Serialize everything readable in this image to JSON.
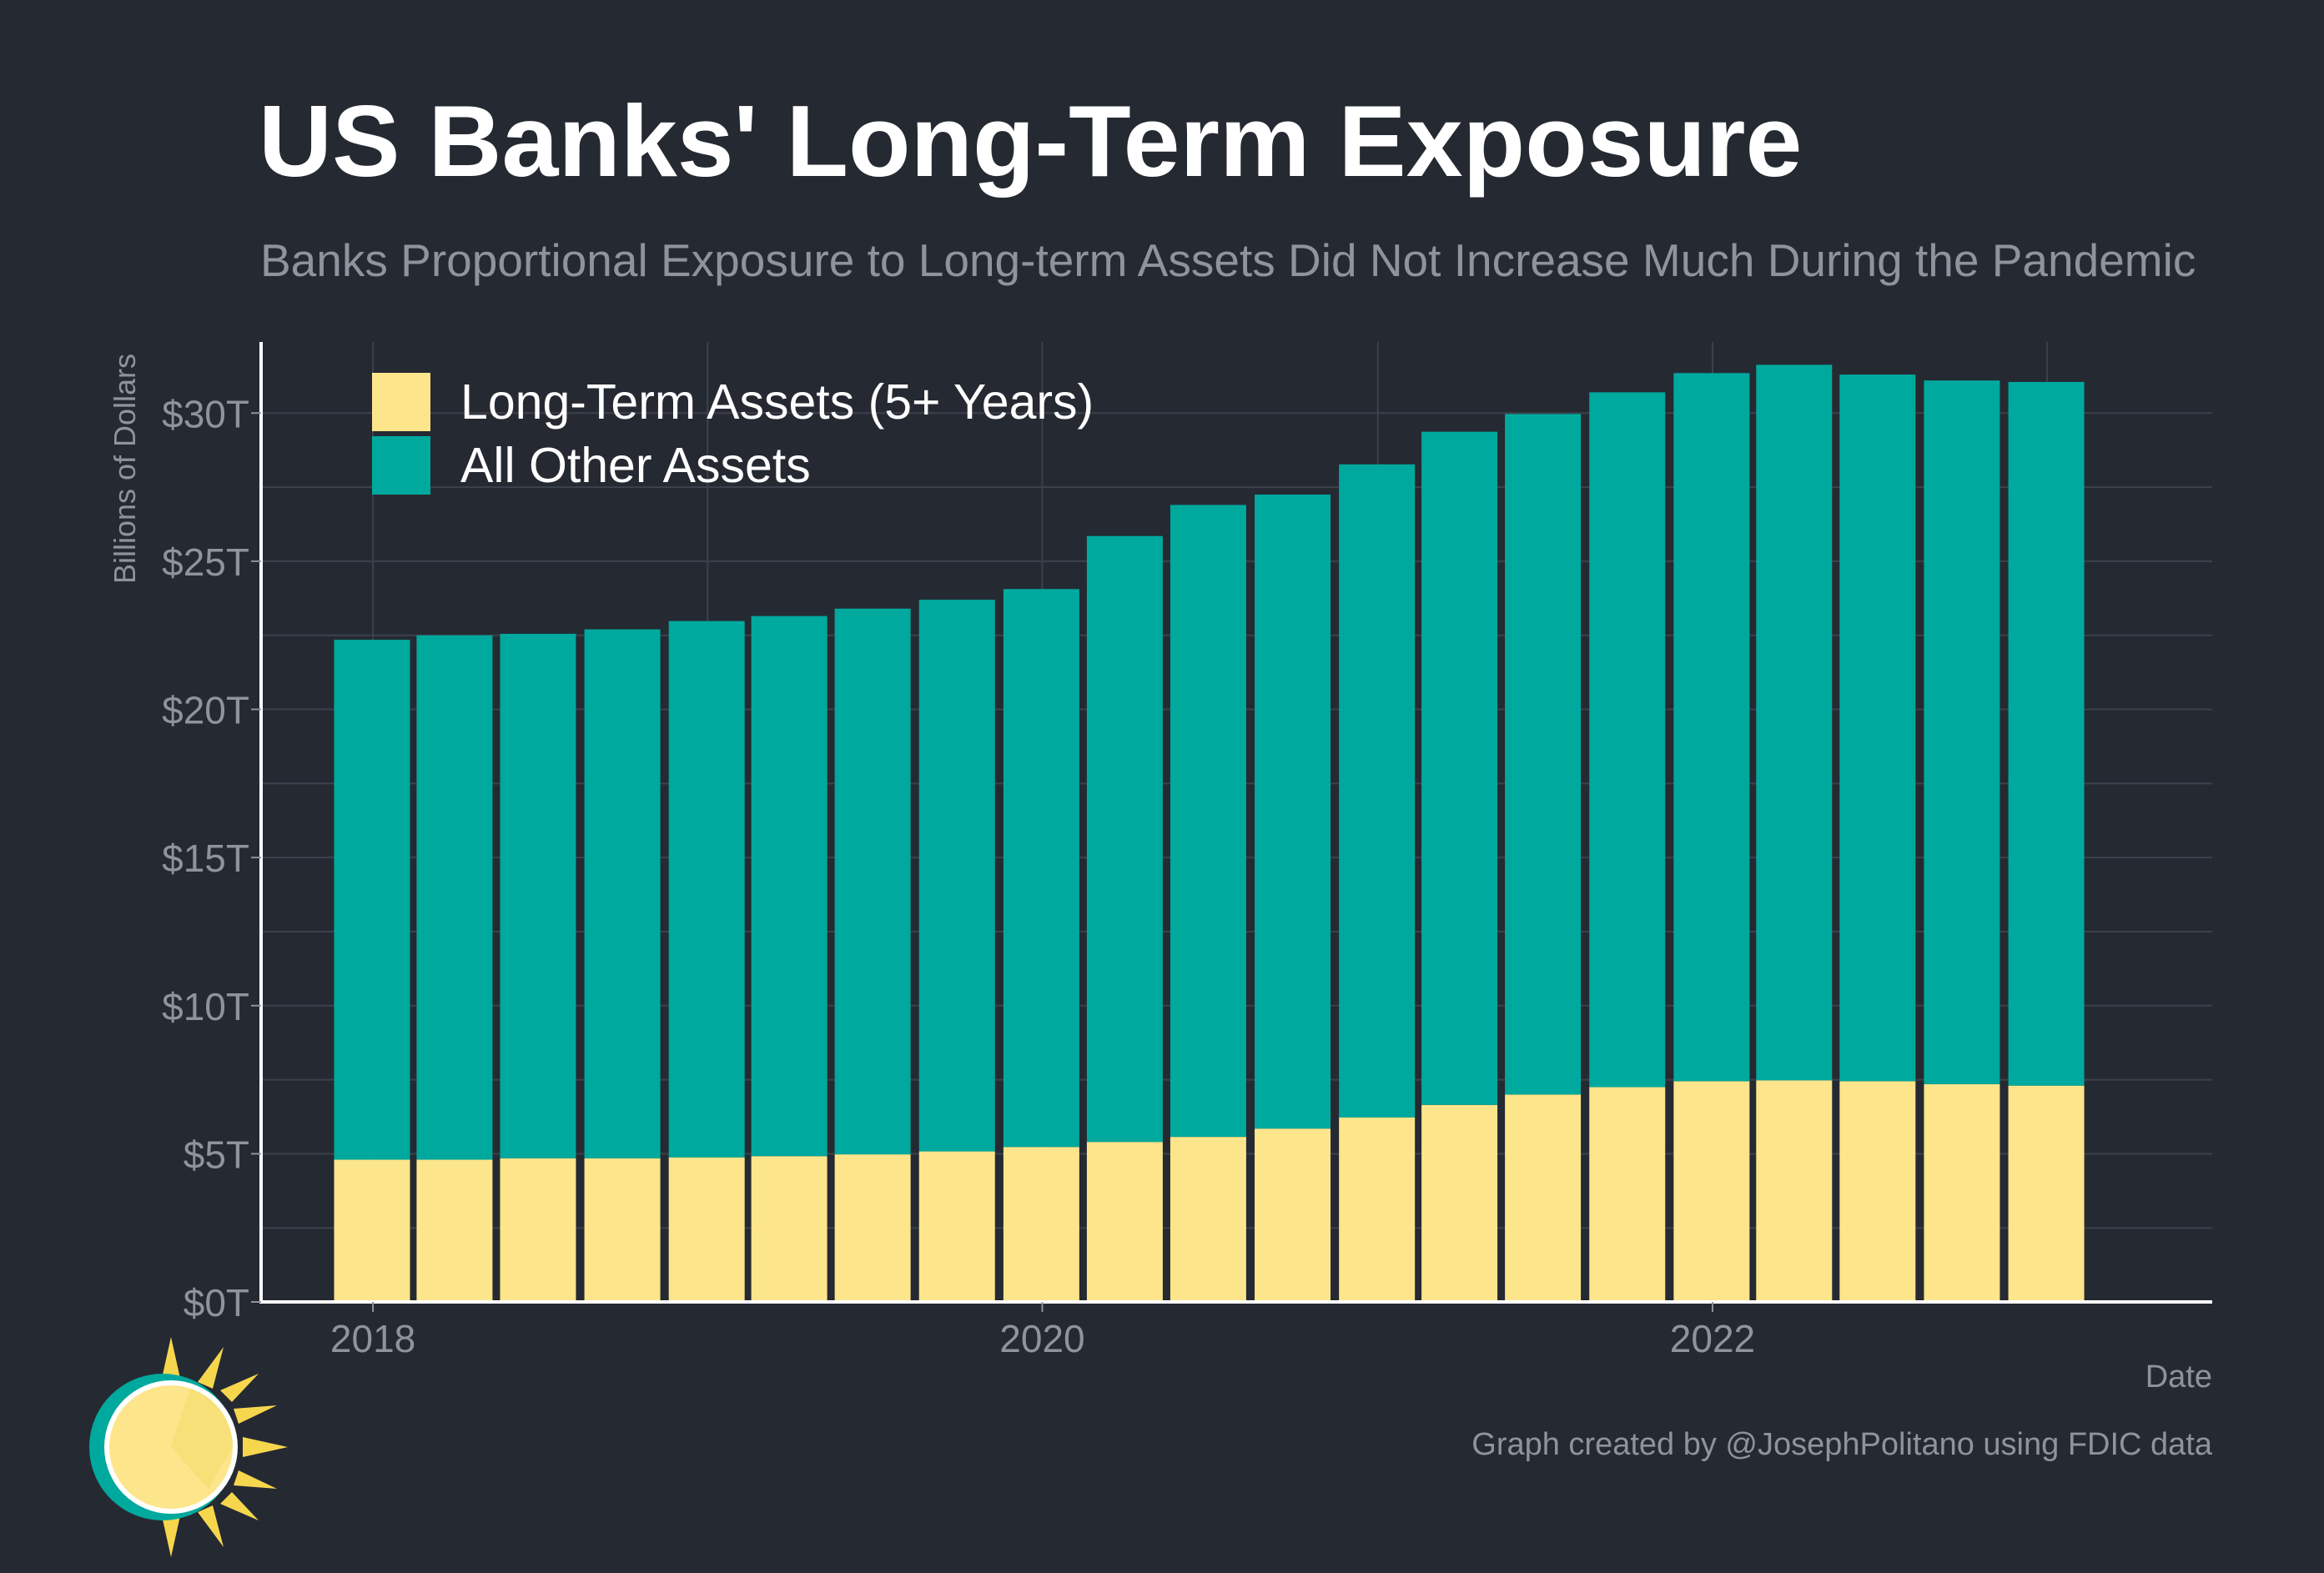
{
  "title": "US Banks' Long-Term Exposure",
  "subtitle": "Banks Proportional Exposure to Long-term Assets Did Not Increase Much During the Pandemic",
  "credit": "Graph created by @JosephPolitano using FDIC data",
  "colors": {
    "background": "#252932",
    "grid": "#3c414b",
    "axis": "#ffffff",
    "muted_text": "#8e939c",
    "long_term": "#fde58b",
    "other": "#00a99d"
  },
  "chart_data": {
    "type": "bar",
    "stacked": true,
    "title": "US Banks' Long-Term Exposure",
    "subtitle": "Banks Proportional Exposure to Long-term Assets Did Not Increase Much During the Pandemic",
    "xlabel": "Date",
    "ylabel": "Billions of Dollars",
    "ylim": [
      0,
      32400
    ],
    "xlim": [
      "2017-09-01",
      "2023-06-30"
    ],
    "yticks": [
      0,
      5000,
      10000,
      15000,
      20000,
      25000,
      30000
    ],
    "ytick_labels": [
      "$0T",
      "$5T",
      "$10T",
      "$15T",
      "$20T",
      "$25T",
      "$30T"
    ],
    "xticks": [
      "2018-01-01",
      "2020-01-01",
      "2022-01-01"
    ],
    "xtick_labels": [
      "2018",
      "2020",
      "2022"
    ],
    "grid": true,
    "legend_position": "top-left",
    "categories": [
      "2017-12-31",
      "2018-03-31",
      "2018-06-30",
      "2018-09-30",
      "2018-12-31",
      "2019-03-31",
      "2019-06-30",
      "2019-09-30",
      "2019-12-31",
      "2020-03-31",
      "2020-06-30",
      "2020-09-30",
      "2020-12-31",
      "2021-03-31",
      "2021-06-30",
      "2021-09-30",
      "2021-12-31",
      "2022-03-31",
      "2022-06-30",
      "2022-09-30",
      "2022-12-31"
    ],
    "series": [
      {
        "name": "Long-Term Assets (5+ Years)",
        "color": "#fde58b",
        "values": [
          4800,
          4800,
          4850,
          4850,
          4880,
          4920,
          4980,
          5080,
          5230,
          5400,
          5570,
          5850,
          6230,
          6650,
          7000,
          7250,
          7450,
          7480,
          7450,
          7350,
          7300
        ]
      },
      {
        "name": "All Other Assets",
        "color": "#00a99d",
        "values": [
          17550,
          17700,
          17700,
          17850,
          18100,
          18230,
          18420,
          18620,
          18830,
          20450,
          21330,
          21400,
          22040,
          22720,
          22970,
          23450,
          23900,
          24150,
          23850,
          23750,
          23750
        ]
      }
    ]
  },
  "logo": {
    "icon": "sun-logo-icon"
  }
}
